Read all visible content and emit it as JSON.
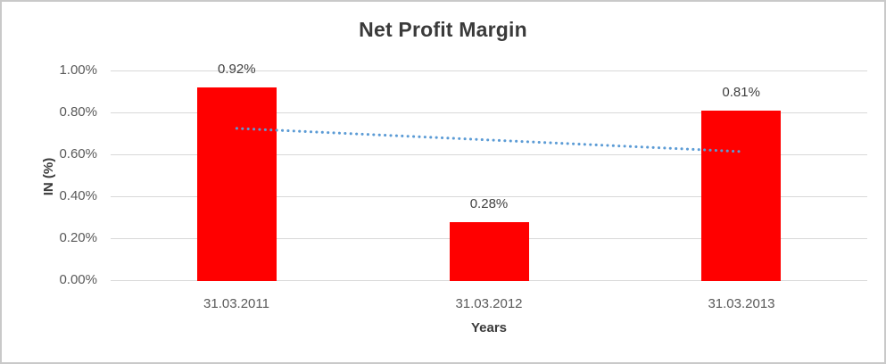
{
  "chart_data": {
    "type": "bar",
    "title": "Net Profit Margin",
    "xlabel": "Years",
    "ylabel": "IN (%)",
    "categories": [
      "31.03.2011",
      "31.03.2012",
      "31.03.2013"
    ],
    "values": [
      0.92,
      0.28,
      0.81
    ],
    "data_labels": [
      "0.92%",
      "0.28%",
      "0.81%"
    ],
    "ytick_labels": [
      "1.00%",
      "0.80%",
      "0.60%",
      "0.40%",
      "0.20%",
      "0.00%"
    ],
    "ylim": [
      0,
      1.0
    ],
    "grid": true,
    "legend": false,
    "series_color": "#ff0000",
    "gridline_color": "#d9d9d9",
    "trendline": {
      "type": "linear",
      "style": "dotted",
      "color": "#5b9bd5",
      "start_value": 0.725,
      "end_value": 0.615
    }
  }
}
